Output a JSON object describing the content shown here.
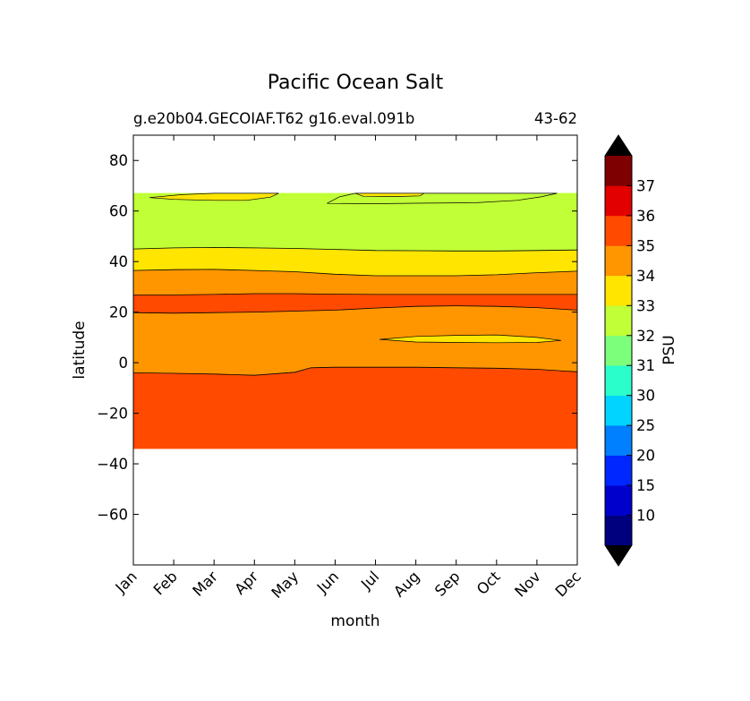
{
  "chart_data": {
    "type": "contour",
    "title": "Pacific Ocean Salt",
    "subtitle_left": "g.e20b04.GECOIAF.T62 g16.eval.091b",
    "subtitle_right": "43-62",
    "xlabel": "month",
    "ylabel": "latitude",
    "x_ticks": [
      "Jan",
      "Feb",
      "Mar",
      "Apr",
      "May",
      "Jun",
      "Jul",
      "Aug",
      "Sep",
      "Oct",
      "Nov",
      "Dec"
    ],
    "xlim": [
      0,
      11
    ],
    "ylim": [
      -80,
      90
    ],
    "y_ticks": [
      {
        "value": 80,
        "label": "80"
      },
      {
        "value": 60,
        "label": "60"
      },
      {
        "value": 40,
        "label": "40"
      },
      {
        "value": 20,
        "label": "20"
      },
      {
        "value": 0,
        "label": "0"
      },
      {
        "value": -20,
        "label": "−20"
      },
      {
        "value": -40,
        "label": "−40"
      },
      {
        "value": -60,
        "label": "−60"
      }
    ],
    "data_lat_range": [
      -34,
      67
    ],
    "boundaries": {
      "b_34_35_south": [
        [
          0,
          -4
        ],
        [
          1,
          -4.2
        ],
        [
          2,
          -4.5
        ],
        [
          3,
          -5
        ],
        [
          4,
          -3.8
        ],
        [
          4.4,
          -2
        ],
        [
          5,
          -1.8
        ],
        [
          6,
          -1.8
        ],
        [
          7,
          -1.8
        ],
        [
          8,
          -2
        ],
        [
          9,
          -2.2
        ],
        [
          10,
          -2.6
        ],
        [
          11,
          -3.6
        ]
      ],
      "b_34_35_north": [
        [
          0,
          19.8
        ],
        [
          1,
          19.6
        ],
        [
          2,
          19.8
        ],
        [
          3,
          20
        ],
        [
          4,
          20.4
        ],
        [
          5,
          20.8
        ],
        [
          6,
          21.6
        ],
        [
          7,
          22.3
        ],
        [
          8,
          22.5
        ],
        [
          9,
          22.3
        ],
        [
          10,
          21.8
        ],
        [
          11,
          20.8
        ]
      ],
      "b_35_34_north": [
        [
          0,
          26.8
        ],
        [
          1,
          26.8
        ],
        [
          2,
          27
        ],
        [
          3,
          27.3
        ],
        [
          4,
          27.3
        ],
        [
          5,
          27.1
        ],
        [
          6,
          27
        ],
        [
          7,
          27
        ],
        [
          8,
          27
        ],
        [
          9,
          27
        ],
        [
          10,
          27
        ],
        [
          11,
          27
        ]
      ],
      "b_34_33_north": [
        [
          0,
          36.5
        ],
        [
          1,
          36.8
        ],
        [
          2,
          36.9
        ],
        [
          3,
          36.5
        ],
        [
          4,
          36
        ],
        [
          5,
          35
        ],
        [
          6,
          34.4
        ],
        [
          7,
          34.4
        ],
        [
          8,
          34.4
        ],
        [
          9,
          34.8
        ],
        [
          10,
          35.6
        ],
        [
          11,
          36.2
        ]
      ],
      "b_33_32_north": [
        [
          0,
          45
        ],
        [
          1,
          45.4
        ],
        [
          2,
          45.6
        ],
        [
          3,
          45.4
        ],
        [
          4,
          45.2
        ],
        [
          5,
          44.8
        ],
        [
          6,
          44.4
        ],
        [
          7,
          44.3
        ],
        [
          8,
          44.2
        ],
        [
          9,
          44.2
        ],
        [
          10,
          44.4
        ],
        [
          11,
          44.6
        ]
      ]
    },
    "islands": [
      {
        "level": "33-34",
        "points": [
          [
            6.1,
            9.2
          ],
          [
            7,
            10.4
          ],
          [
            8,
            10.8
          ],
          [
            9,
            11
          ],
          [
            10,
            10
          ],
          [
            10.6,
            8.8
          ],
          [
            10,
            8
          ],
          [
            9,
            7.9
          ],
          [
            8,
            8
          ],
          [
            7,
            8.2
          ],
          [
            6.1,
            9.2
          ]
        ]
      },
      {
        "level": "33-34",
        "points": [
          [
            0.4,
            65.3
          ],
          [
            1.2,
            66.5
          ],
          [
            2,
            67
          ],
          [
            3.6,
            67
          ],
          [
            3.4,
            65.5
          ],
          [
            2.8,
            64.2
          ],
          [
            2,
            64.2
          ],
          [
            1,
            64.6
          ],
          [
            0.4,
            65.3
          ]
        ]
      },
      {
        "level": "32-33",
        "points": [
          [
            4.8,
            63
          ],
          [
            5.1,
            65.6
          ],
          [
            5.5,
            67
          ],
          [
            9.5,
            67
          ],
          [
            10.5,
            67
          ],
          [
            10.1,
            65.6
          ],
          [
            9.5,
            64.2
          ],
          [
            8.5,
            63.3
          ],
          [
            7,
            63.1
          ],
          [
            6,
            62.9
          ],
          [
            4.8,
            63
          ]
        ]
      },
      {
        "level": "33-34",
        "points": [
          [
            5.5,
            67
          ],
          [
            7.2,
            67
          ],
          [
            7.1,
            66
          ],
          [
            6.5,
            65.7
          ],
          [
            5.7,
            65.8
          ],
          [
            5.5,
            67
          ]
        ]
      }
    ],
    "colorbar": {
      "label": "PSU",
      "levels": [
        "10",
        "15",
        "20",
        "25",
        "30",
        "31",
        "32",
        "33",
        "34",
        "35",
        "36",
        "37"
      ],
      "colors": [
        "#00007f",
        "#0000cd",
        "#0027ff",
        "#007fff",
        "#00d4ff",
        "#2affcc",
        "#7cff7a",
        "#c1ff36",
        "#ffe500",
        "#ff9600",
        "#ff4a00",
        "#e30000",
        "#7f0000"
      ],
      "under_color": "#000000",
      "over_color": "#000000"
    },
    "grid": false,
    "legend": "none"
  }
}
